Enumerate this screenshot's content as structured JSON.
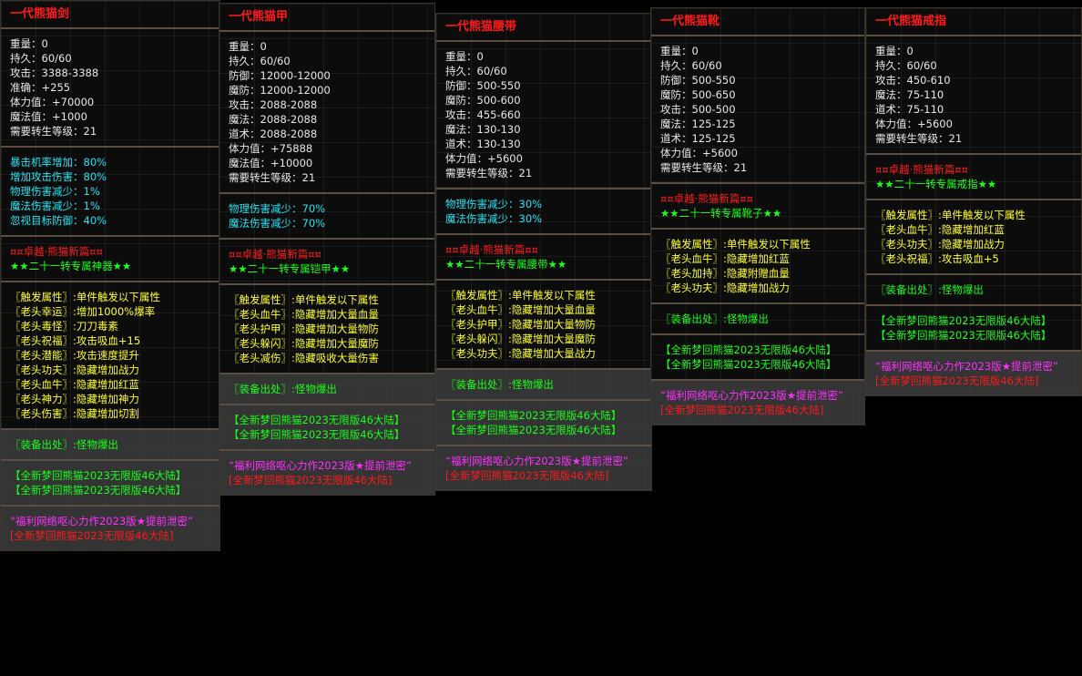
{
  "colors": {
    "white": "#e8e8e8",
    "cyan": "#22e4f4",
    "red": "#ff1a1a",
    "green": "#18ff18",
    "yellow": "#ffff30",
    "magenta": "#ff30ff"
  },
  "panels": [
    {
      "title": "一代熊猫剑",
      "sections": [
        {
          "color": "white",
          "lines": [
            "重量：0",
            "持久：60/60",
            "攻击：3388-3388",
            "准确：+255",
            "体力值：+70000",
            "魔法值：+1000",
            "需要转生等级：21"
          ]
        },
        {
          "color": "cyan",
          "lines": [
            "暴击机率增加：80%",
            "增加攻击伤害：80%",
            "物理伤害减少：1%",
            "魔法伤害减少：1%",
            "忽视目标防御：40%"
          ]
        },
        {
          "colors": [
            "red",
            "green"
          ],
          "lines": [
            "¤¤卓越·熊猫新篇¤¤",
            "★★二十一转专属神器★★"
          ]
        },
        {
          "color": "yellow",
          "lines": [
            "〖触发属性〗:单件触发以下属性",
            "〖老头幸运〗:增加1000%爆率",
            "〖老头毒怪〗:刀刀毒素",
            "〖老头祝福〗:攻击吸血+15",
            "〖老头潜能〗:攻击速度提升",
            "〖老头功夫〗:隐藏增加战力",
            "〖老头血牛〗:隐藏增加红蓝",
            "〖老头神力〗:隐藏增加神力",
            "〖老头伤害〗:隐藏增加切割"
          ]
        },
        {
          "color": "green",
          "dim": true,
          "lines": [
            "〖装备出处〗:怪物爆出"
          ]
        },
        {
          "color": "green",
          "dim": true,
          "lines": [
            "【全新梦回熊猫2023无限版46大陆】",
            "【全新梦回熊猫2023无限版46大陆】"
          ]
        },
        {
          "colors": [
            "magenta",
            "red"
          ],
          "dim": true,
          "lines": [
            "“福利网络呕心力作2023版★提前泄密”",
            "[全新梦回熊猫2023无限版46大陆]"
          ]
        }
      ]
    },
    {
      "title": "一代熊猫甲",
      "sections": [
        {
          "color": "white",
          "lines": [
            "重量：0",
            "持久：60/60",
            "防御：12000-12000",
            "魔防：12000-12000",
            "攻击：2088-2088",
            "魔法：2088-2088",
            "道术：2088-2088",
            "体力值：+75888",
            "魔法值：+10000",
            "需要转生等级：21"
          ]
        },
        {
          "color": "cyan",
          "lines": [
            "物理伤害减少：70%",
            "魔法伤害减少：70%"
          ]
        },
        {
          "colors": [
            "red",
            "green"
          ],
          "lines": [
            "¤¤卓越·熊猫新篇¤¤",
            "★★二十一转专属铠甲★★"
          ]
        },
        {
          "color": "yellow",
          "lines": [
            "〖触发属性〗:单件触发以下属性",
            "〖老头血牛〗:隐藏增加大量血量",
            "〖老头护甲〗:隐藏增加大量物防",
            "〖老头躲闪〗:隐藏增加大量魔防",
            "〖老头减伤〗:隐藏吸收大量伤害"
          ]
        },
        {
          "color": "green",
          "dim": true,
          "lines": [
            "〖装备出处〗:怪物爆出"
          ]
        },
        {
          "color": "green",
          "dim": true,
          "lines": [
            "【全新梦回熊猫2023无限版46大陆】",
            "【全新梦回熊猫2023无限版46大陆】"
          ]
        },
        {
          "colors": [
            "magenta",
            "red"
          ],
          "dim": true,
          "lines": [
            "“福利网络呕心力作2023版★提前泄密”",
            "[全新梦回熊猫2023无限版46大陆]"
          ]
        }
      ]
    },
    {
      "title": "一代熊猫腰带",
      "sections": [
        {
          "color": "white",
          "lines": [
            "重量：0",
            "持久：60/60",
            "防御：500-550",
            "魔防：500-600",
            "攻击：455-660",
            "魔法：130-130",
            "道术：130-130",
            "体力值：+5600",
            "需要转生等级：21"
          ]
        },
        {
          "color": "cyan",
          "lines": [
            "物理伤害减少：30%",
            "魔法伤害减少：30%"
          ]
        },
        {
          "colors": [
            "red",
            "green"
          ],
          "lines": [
            "¤¤卓越·熊猫新篇¤¤",
            "★★二十一转专属腰带★★"
          ]
        },
        {
          "color": "yellow",
          "lines": [
            "〖触发属性〗:单件触发以下属性",
            "〖老头血牛〗:隐藏增加大量血量",
            "〖老头护甲〗:隐藏增加大量物防",
            "〖老头躲闪〗:隐藏增加大量魔防",
            "〖老头功夫〗:隐藏增加大量战力"
          ]
        },
        {
          "color": "green",
          "dim": true,
          "lines": [
            "〖装备出处〗:怪物爆出"
          ]
        },
        {
          "color": "green",
          "dim": true,
          "lines": [
            "【全新梦回熊猫2023无限版46大陆】",
            "【全新梦回熊猫2023无限版46大陆】"
          ]
        },
        {
          "colors": [
            "magenta",
            "red"
          ],
          "dim": true,
          "lines": [
            "“福利网络呕心力作2023版★提前泄密”",
            "[全新梦回熊猫2023无限版46大陆]"
          ]
        }
      ]
    },
    {
      "title": "一代熊猫靴",
      "sections": [
        {
          "color": "white",
          "lines": [
            "重量：0",
            "持久：60/60",
            "防御：500-550",
            "魔防：500-650",
            "攻击：500-500",
            "魔法：125-125",
            "道术：125-125",
            "体力值：+5600",
            "需要转生等级：21"
          ]
        },
        {
          "colors": [
            "red",
            "green"
          ],
          "lines": [
            "¤¤卓越·熊猫新篇¤¤",
            "★★二十一转专属靴子★★"
          ]
        },
        {
          "color": "yellow",
          "lines": [
            "〖触发属性〗:单件触发以下属性",
            "〖老头血牛〗:隐藏增加红蓝",
            "〖老头加持〗:隐藏附赠血量",
            "〖老头功夫〗:隐藏增加战力"
          ]
        },
        {
          "color": "green",
          "lines": [
            "〖装备出处〗:怪物爆出"
          ]
        },
        {
          "color": "green",
          "lines": [
            "【全新梦回熊猫2023无限版46大陆】",
            "【全新梦回熊猫2023无限版46大陆】"
          ]
        },
        {
          "colors": [
            "magenta",
            "red"
          ],
          "dim": true,
          "lines": [
            "“福利网络呕心力作2023版★提前泄密”",
            "[全新梦回熊猫2023无限版46大陆]"
          ]
        }
      ]
    },
    {
      "title": "一代熊猫戒指",
      "sections": [
        {
          "color": "white",
          "lines": [
            "重量：0",
            "持久：60/60",
            "攻击：450-610",
            "魔法：75-110",
            "道术：75-110",
            "体力值：+5600",
            "需要转生等级：21"
          ]
        },
        {
          "colors": [
            "red",
            "green"
          ],
          "lines": [
            "¤¤卓越·熊猫新篇¤¤",
            "★★二十一转专属戒指★★"
          ]
        },
        {
          "color": "yellow",
          "lines": [
            "〖触发属性〗:单件触发以下属性",
            "〖老头血牛〗:隐藏增加红蓝",
            "〖老头功夫〗:隐藏增加战力",
            "〖老头祝福〗:攻击吸血+5"
          ]
        },
        {
          "color": "green",
          "lines": [
            "〖装备出处〗:怪物爆出"
          ]
        },
        {
          "color": "green",
          "lines": [
            "【全新梦回熊猫2023无限版46大陆】",
            "【全新梦回熊猫2023无限版46大陆】"
          ]
        },
        {
          "colors": [
            "magenta",
            "red"
          ],
          "dim": true,
          "lines": [
            "“福利网络呕心力作2023版★提前泄密”",
            "[全新梦回熊猫2023无限版46大陆]"
          ]
        }
      ]
    }
  ]
}
